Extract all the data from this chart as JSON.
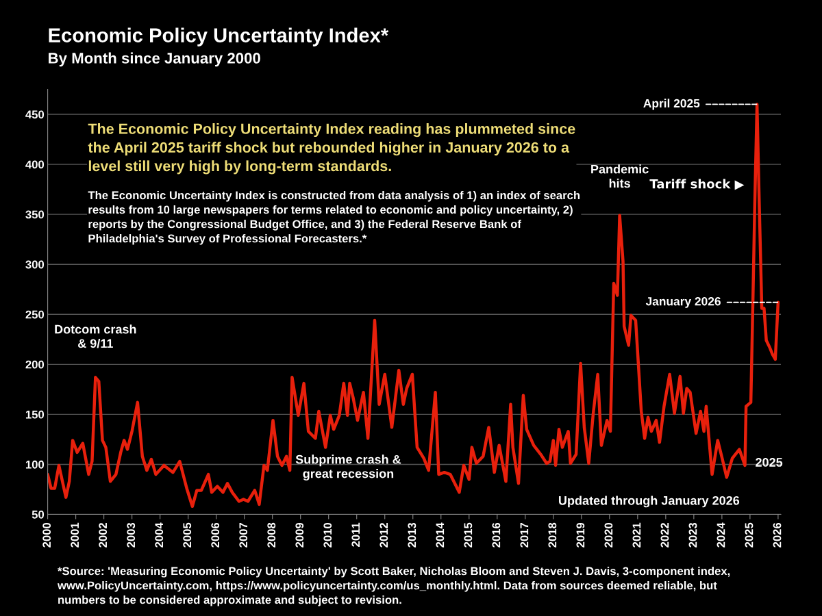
{
  "chart_data": {
    "type": "line",
    "title": "Economic Policy Uncertainty Index*",
    "subtitle": "By Month since January 2000",
    "x": [
      2000.0,
      2000.12,
      2000.25,
      2000.4,
      2000.65,
      2000.77,
      2000.89,
      2001.05,
      2001.25,
      2001.46,
      2001.58,
      2001.7,
      2001.82,
      2001.95,
      2002.07,
      2002.23,
      2002.43,
      2002.6,
      2002.72,
      2002.84,
      2003.0,
      2003.2,
      2003.37,
      2003.53,
      2003.69,
      2003.85,
      2004.14,
      2004.46,
      2004.7,
      2004.95,
      2005.15,
      2005.31,
      2005.47,
      2005.72,
      2005.84,
      2006.04,
      2006.24,
      2006.4,
      2006.57,
      2006.81,
      2006.97,
      2007.13,
      2007.37,
      2007.53,
      2007.7,
      2007.82,
      2008.02,
      2008.18,
      2008.34,
      2008.5,
      2008.62,
      2008.7,
      2008.92,
      2009.12,
      2009.28,
      2009.53,
      2009.65,
      2009.89,
      2010.06,
      2010.18,
      2010.38,
      2010.54,
      2010.67,
      2010.75,
      2010.87,
      2011.03,
      2011.24,
      2011.4,
      2011.64,
      2011.8,
      2012.0,
      2012.25,
      2012.5,
      2012.66,
      2012.78,
      2012.98,
      2013.15,
      2013.39,
      2013.56,
      2013.8,
      2013.92,
      2014.12,
      2014.33,
      2014.65,
      2014.81,
      2015.0,
      2015.1,
      2015.26,
      2015.5,
      2015.7,
      2015.9,
      2016.07,
      2016.31,
      2016.48,
      2016.56,
      2016.76,
      2016.93,
      2017.05,
      2017.3,
      2017.55,
      2017.76,
      2017.88,
      2018.0,
      2018.08,
      2018.2,
      2018.32,
      2018.53,
      2018.61,
      2018.81,
      2018.97,
      2019.1,
      2019.26,
      2019.42,
      2019.58,
      2019.71,
      2019.91,
      2020.03,
      2020.15,
      2020.28,
      2020.36,
      2020.48,
      2020.52,
      2020.68,
      2020.76,
      2020.93,
      2021.13,
      2021.25,
      2021.37,
      2021.49,
      2021.66,
      2021.78,
      2021.94,
      2022.14,
      2022.31,
      2022.51,
      2022.63,
      2022.75,
      2022.87,
      2023.08,
      2023.24,
      2023.36,
      2023.44,
      2023.65,
      2023.85,
      2024.01,
      2024.17,
      2024.37,
      2024.62,
      2024.82,
      2024.86,
      2025.03,
      2025.1,
      2025.17,
      2025.25,
      2025.33,
      2025.42,
      2025.5,
      2025.58,
      2025.7,
      2025.8,
      2025.9,
      2026.0
    ],
    "series": [
      {
        "color": "#e8200c",
        "values": [
          90,
          76,
          76,
          99,
          67,
          83,
          124,
          112,
          121,
          90,
          103,
          187,
          183,
          124,
          117,
          83,
          90,
          112,
          124,
          115,
          133,
          162,
          108,
          94,
          105,
          90,
          99,
          92,
          103,
          76,
          58,
          74,
          74,
          90,
          72,
          78,
          72,
          81,
          72,
          63,
          65,
          63,
          74,
          60,
          99,
          94,
          144,
          108,
          99,
          108,
          94,
          187,
          149,
          181,
          133,
          126,
          153,
          117,
          149,
          135,
          149,
          181,
          149,
          181,
          167,
          144,
          172,
          126,
          244,
          160,
          190,
          137,
          194,
          160,
          176,
          190,
          117,
          106,
          94,
          172,
          90,
          92,
          90,
          72,
          99,
          85,
          117,
          101,
          108,
          137,
          92,
          119,
          83,
          160,
          117,
          81,
          169,
          135,
          119,
          110,
          101,
          103,
          124,
          99,
          135,
          117,
          133,
          101,
          110,
          201,
          137,
          101,
          151,
          190,
          119,
          144,
          133,
          281,
          269,
          349,
          303,
          238,
          219,
          249,
          244,
          153,
          126,
          147,
          133,
          144,
          122,
          158,
          190,
          151,
          188,
          151,
          176,
          172,
          131,
          153,
          133,
          158,
          90,
          124,
          106,
          87,
          106,
          115,
          99,
          158,
          162,
          258,
          360,
          460,
          360,
          256,
          256,
          224,
          217,
          210,
          205,
          262
        ]
      }
    ],
    "xlim": [
      2000,
      2026.1
    ],
    "xticks": [
      2000,
      2001,
      2002,
      2003,
      2004,
      2005,
      2006,
      2007,
      2008,
      2009,
      2010,
      2011,
      2012,
      2013,
      2014,
      2015,
      2016,
      2017,
      2018,
      2019,
      2020,
      2021,
      2022,
      2023,
      2024,
      2025,
      2026
    ],
    "ylim": [
      50,
      475
    ],
    "yticks": [
      50,
      100,
      150,
      200,
      250,
      300,
      350,
      400,
      450
    ],
    "grid": "y",
    "legend": false,
    "marker": "none",
    "line_style": "solid",
    "annotations": [
      "The Economic Policy Uncertainty Index reading has plummeted since the April 2025 tariff shock but rebounded higher in January 2026 to a level still very high by long-term standards.",
      "The Economic Uncertainty Index is constructed from data analysis of 1) an index of search results from 10 large newspapers for terms related to economic and policy uncertainty, 2) reports by the Congressional Budget Office, and 3) the Federal Reserve Bank of Philadelphia's Survey of Professional Forecasters.*",
      {
        "text": "Dotcom crash\n& 9/11",
        "x": 2001.7,
        "y": 187
      },
      "Subprime crash &\ngreat recession",
      {
        "text": "Pandemic\nhits",
        "x": 2020.36,
        "y": 349
      },
      {
        "text": "April 2025",
        "x": 2025.25,
        "y": 460
      },
      "Tariff shock ▶",
      {
        "text": "January 2026",
        "x": 2026.0,
        "y": 262
      },
      "2025",
      "Updated through January 2026",
      "*Source: 'Measuring Economic Policy Uncertainty' by Scott Baker, Nicholas Bloom and Steven J. Davis, 3-component index, www.PolicyUncertainty.com, https://www.policyuncertainty.com/us_monthly.html. Data from sources deemed reliable, but numbers to be considered approximate and subject to revision."
    ]
  }
}
